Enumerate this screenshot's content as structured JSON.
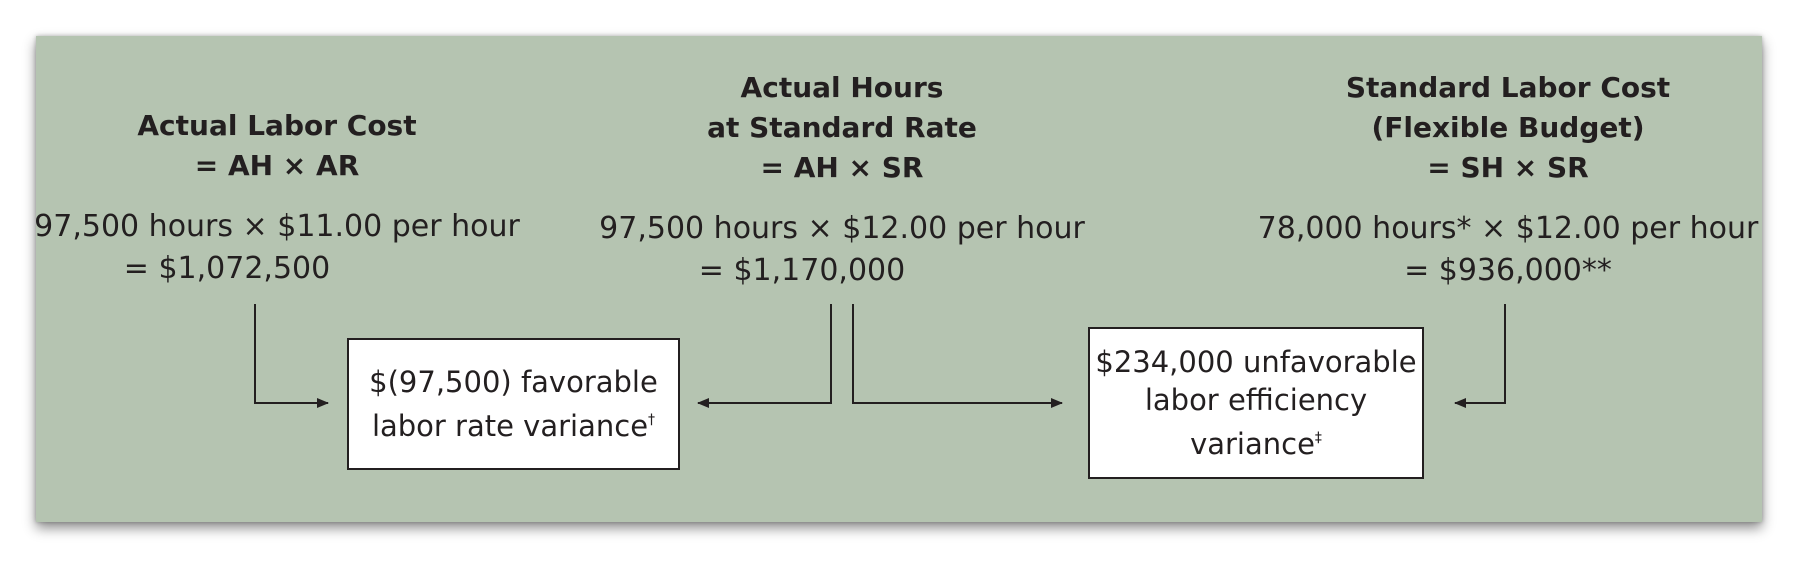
{
  "columns": {
    "actual": {
      "heading": [
        "Actual Labor Cost",
        "= AH × AR"
      ],
      "calc": [
        "97,500 hours × $11.00 per hour",
        "=  $1,072,500"
      ]
    },
    "middle": {
      "heading": [
        "Actual Hours",
        "at Standard Rate",
        "= AH × SR"
      ],
      "calc": [
        "97,500 hours × $12.00 per hour",
        "=  $1,170,000"
      ]
    },
    "standard": {
      "heading": [
        "Standard Labor Cost",
        "(Flexible Budget)",
        "= SH × SR"
      ],
      "calc": [
        "78,000 hours* × $12.00 per hour",
        "=  $936,000**"
      ]
    }
  },
  "variances": {
    "rate": {
      "lines": [
        "$(97,500) favorable",
        "labor rate variance"
      ],
      "mark": "†"
    },
    "efficiency": {
      "lines": [
        "$234,000 unfavorable",
        "labor efficiency",
        "variance"
      ],
      "mark": "‡"
    }
  },
  "colors": {
    "panel": "#b5c4b1",
    "box": "#ffffff",
    "ink": "#231f20"
  }
}
